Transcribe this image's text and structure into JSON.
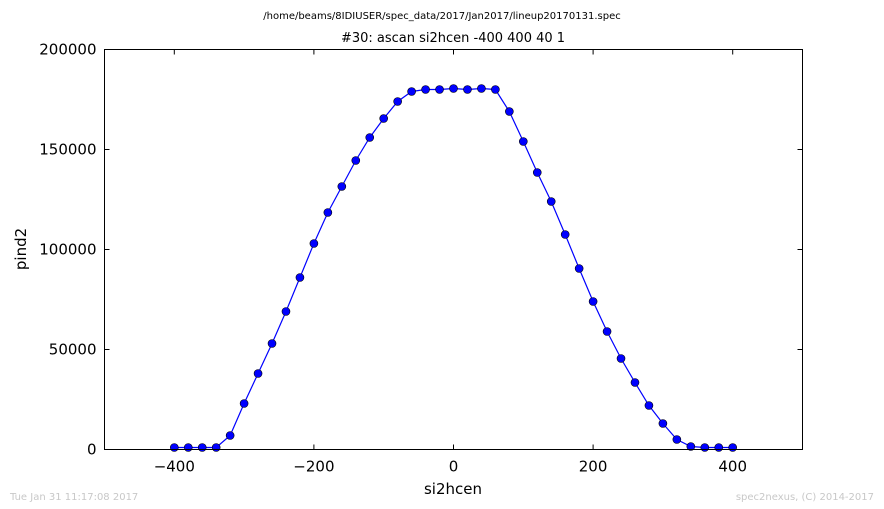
{
  "figure": {
    "suptitle": "/home/beams/8IDIUSER/spec_data/2017/Jan2017/lineup20170131.spec",
    "footer_left": "Tue Jan 31 11:17:08 2017",
    "footer_right": "spec2nexus, (C) 2014-2017"
  },
  "chart_data": {
    "type": "line",
    "title": "#30: ascan  si2hcen -400 400  40 1",
    "xlabel": "si2hcen",
    "ylabel": "pind2",
    "xlim": [
      -500,
      500
    ],
    "ylim": [
      0,
      200000
    ],
    "xticks": [
      -400,
      -200,
      0,
      200,
      400
    ],
    "xtick_labels": [
      "−400",
      "−200",
      "0",
      "200",
      "400"
    ],
    "yticks": [
      0,
      50000,
      100000,
      150000,
      200000
    ],
    "ytick_labels": [
      "0",
      "50000",
      "100000",
      "150000",
      "200000"
    ],
    "grid": false,
    "legend": "none",
    "series": [
      {
        "color": "#0000ff",
        "marker": "circle",
        "x": [
          -400,
          -380,
          -360,
          -340,
          -320,
          -300,
          -280,
          -260,
          -240,
          -220,
          -200,
          -180,
          -160,
          -140,
          -120,
          -100,
          -80,
          -60,
          -40,
          -20,
          0,
          20,
          40,
          60,
          80,
          100,
          120,
          140,
          160,
          180,
          200,
          220,
          240,
          260,
          280,
          300,
          320,
          340,
          360,
          380,
          400
        ],
        "y": [
          1000,
          1000,
          1000,
          1000,
          7000,
          23000,
          38000,
          53000,
          69000,
          86000,
          103000,
          118500,
          131500,
          144500,
          156000,
          165500,
          174000,
          179000,
          180000,
          180000,
          180500,
          180000,
          180500,
          180000,
          169000,
          154000,
          138500,
          124000,
          107500,
          90500,
          74000,
          59000,
          45500,
          33500,
          22000,
          13000,
          5000,
          1500,
          1000,
          1000,
          1000
        ]
      }
    ]
  }
}
